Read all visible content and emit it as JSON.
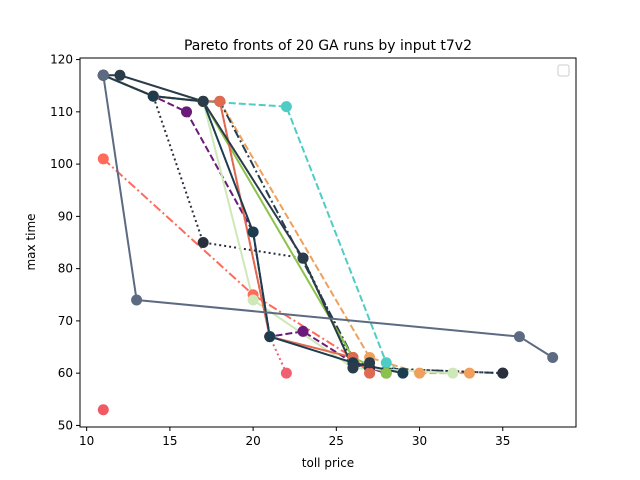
{
  "chart_data": {
    "type": "line",
    "title": "Pareto fronts of 20 GA runs by input t7v2",
    "xlabel": "toll price",
    "ylabel": "max time",
    "xlim": [
      9.6,
      39.4
    ],
    "ylim": [
      49.7,
      120.3
    ],
    "xticks": [
      10,
      15,
      20,
      25,
      30,
      35
    ],
    "yticks": [
      50,
      60,
      70,
      80,
      90,
      100,
      110,
      120
    ],
    "grid": false,
    "legend": {
      "placement": "top-right",
      "entries": []
    },
    "series": [
      {
        "color": "#f0a05a",
        "dash": "dashed",
        "width": 2,
        "points": [
          [
            11,
            117
          ],
          [
            14,
            113
          ],
          [
            17,
            112
          ],
          [
            18,
            112
          ],
          [
            27,
            63
          ],
          [
            30,
            60
          ],
          [
            33,
            60
          ]
        ]
      },
      {
        "color": "#4ecdc4",
        "dash": "dashed",
        "width": 2,
        "points": [
          [
            11,
            117
          ],
          [
            14,
            113
          ],
          [
            17,
            112
          ],
          [
            22,
            111
          ],
          [
            28,
            62
          ],
          [
            29,
            60
          ]
        ]
      },
      {
        "color": "#243f52",
        "dash": "dashdot",
        "width": 2,
        "points": [
          [
            11,
            117
          ],
          [
            14,
            113
          ],
          [
            17,
            112
          ],
          [
            18,
            112
          ],
          [
            26,
            63
          ],
          [
            27,
            61
          ],
          [
            35,
            60
          ]
        ]
      },
      {
        "color": "#2a2f3d",
        "dash": "dotted",
        "width": 2,
        "points": [
          [
            11,
            117
          ],
          [
            14,
            113
          ],
          [
            17,
            85
          ],
          [
            23,
            82
          ],
          [
            26,
            62
          ],
          [
            27,
            61
          ],
          [
            35,
            60
          ]
        ]
      },
      {
        "color": "#6a1a7a",
        "dash": "dashed",
        "width": 2,
        "points": [
          [
            11,
            117
          ],
          [
            14,
            113
          ],
          [
            16,
            110
          ],
          [
            20,
            87
          ],
          [
            21,
            67
          ],
          [
            23,
            68
          ],
          [
            26,
            62
          ],
          [
            28,
            60
          ]
        ]
      },
      {
        "color": "#f06070",
        "dash": "dotted",
        "width": 2,
        "points": [
          [
            11,
            117
          ],
          [
            14,
            113
          ],
          [
            17,
            112
          ],
          [
            18,
            112
          ],
          [
            21,
            67
          ],
          [
            22,
            60
          ]
        ]
      },
      {
        "color": "#ff6b5a",
        "dash": "dashdot",
        "width": 2,
        "points": [
          [
            11,
            101
          ],
          [
            20,
            75
          ],
          [
            26,
            63
          ],
          [
            27,
            60
          ]
        ]
      },
      {
        "color": "#8bc34a",
        "dash": "solid",
        "width": 2,
        "points": [
          [
            11,
            117
          ],
          [
            14,
            113
          ],
          [
            17,
            112
          ],
          [
            26,
            63
          ],
          [
            28,
            60
          ]
        ]
      },
      {
        "color": "#cfe8b8",
        "dash": "solid",
        "width": 2,
        "points": [
          [
            11,
            117
          ],
          [
            14,
            113
          ],
          [
            17,
            112
          ],
          [
            20,
            74
          ],
          [
            26,
            61
          ],
          [
            32,
            60
          ]
        ]
      },
      {
        "color": "#e06a50",
        "dash": "solid",
        "width": 2,
        "points": [
          [
            11,
            117
          ],
          [
            14,
            113
          ],
          [
            17,
            112
          ],
          [
            18,
            112
          ],
          [
            21,
            67
          ],
          [
            26,
            63
          ],
          [
            27,
            60
          ]
        ]
      },
      {
        "color": "#1d3d4f",
        "dash": "solid",
        "width": 2,
        "points": [
          [
            11,
            117
          ],
          [
            14,
            113
          ],
          [
            17,
            112
          ],
          [
            20,
            87
          ],
          [
            21,
            67
          ],
          [
            26,
            62
          ],
          [
            29,
            60
          ]
        ]
      },
      {
        "color": "#2a3b4a",
        "dash": "solid",
        "width": 2,
        "points": [
          [
            11,
            117
          ],
          [
            12,
            117
          ],
          [
            17,
            112
          ],
          [
            23,
            82
          ],
          [
            26,
            61
          ],
          [
            27,
            62
          ]
        ]
      },
      {
        "color": "#5c6a82",
        "dash": "solid",
        "width": 2,
        "points": [
          [
            11,
            117
          ],
          [
            13,
            74
          ],
          [
            36,
            67
          ],
          [
            38,
            63
          ]
        ]
      },
      {
        "color": "#f05a64",
        "dash": "solid",
        "width": 2,
        "points": [
          [
            11,
            53
          ]
        ]
      }
    ]
  }
}
